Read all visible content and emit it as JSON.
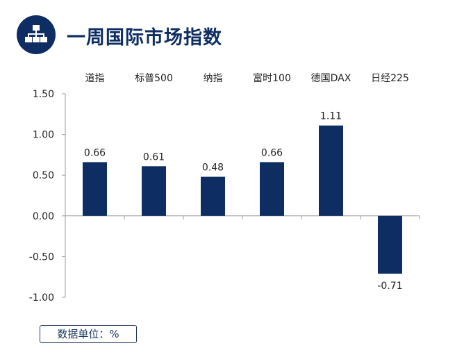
{
  "header": {
    "title": "一周国际市场指数",
    "icon": "hierarchy-icon",
    "accent_color": "#0d2d63"
  },
  "unit_label": "数据单位：%",
  "chart_data": {
    "type": "bar",
    "title": "一周国际市场指数",
    "categories": [
      "道指",
      "标普500",
      "纳指",
      "富时100",
      "德国DAX",
      "日经225"
    ],
    "series": [
      {
        "values": [
          0.66,
          0.61,
          0.48,
          0.66,
          1.11,
          -0.71
        ]
      }
    ],
    "data_labels": [
      "0.66",
      "0.61",
      "0.48",
      "0.66",
      "1.11",
      "-0.71"
    ],
    "y_ticks": [
      "1.50",
      "1.00",
      "0.50",
      "0.00",
      "-0.50",
      "-1.00"
    ],
    "y_tick_values": [
      1.5,
      1.0,
      0.5,
      0.0,
      -0.5,
      -1.0
    ],
    "ylim": [
      -1.0,
      1.5
    ],
    "category_labels_position": "top",
    "grid": false,
    "legend": "none",
    "bar_color": "#0d2d63",
    "unit": "%"
  }
}
